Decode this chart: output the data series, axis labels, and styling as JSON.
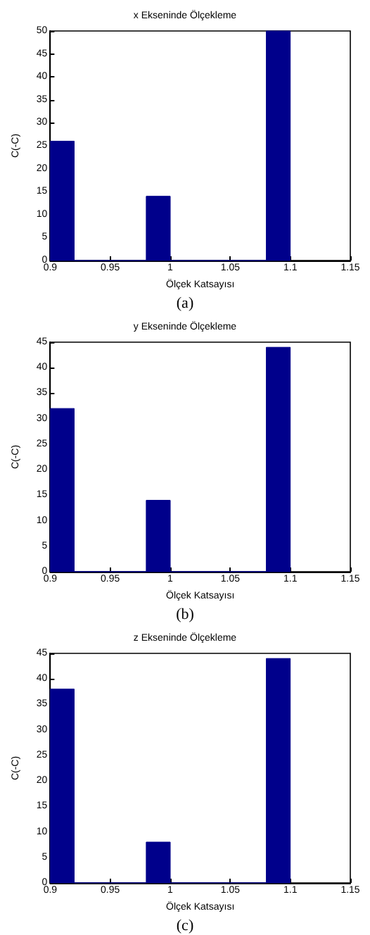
{
  "chart_data": [
    {
      "type": "histogram",
      "title": "x Ekseninde Ölçekleme",
      "xlabel": "Ölçek Katsayısı",
      "ylabel": "C(-C)",
      "bins": [
        0.9,
        0.92,
        0.94,
        0.96,
        0.98,
        1.0,
        1.02,
        1.04,
        1.06,
        1.08,
        1.1
      ],
      "values": [
        26,
        0,
        0,
        0,
        14,
        0,
        0,
        0,
        0,
        50
      ],
      "color": "#00008b",
      "xlim": [
        0.9,
        1.15
      ],
      "xticks": [
        0.9,
        0.95,
        1,
        1.05,
        1.1,
        1.15
      ],
      "ylim": [
        0,
        50
      ],
      "yticks": [
        0,
        5,
        10,
        15,
        20,
        25,
        30,
        35,
        40,
        45,
        50
      ],
      "grid": false,
      "annotations": [
        "(a)"
      ]
    },
    {
      "type": "histogram",
      "title": "y Ekseninde Ölçekleme",
      "xlabel": "Ölçek Katsayısı",
      "ylabel": "C(-C)",
      "bins": [
        0.9,
        0.92,
        0.94,
        0.96,
        0.98,
        1.0,
        1.02,
        1.04,
        1.06,
        1.08,
        1.1
      ],
      "values": [
        32,
        0,
        0,
        0,
        14,
        0,
        0,
        0,
        0,
        44
      ],
      "color": "#00008b",
      "xlim": [
        0.9,
        1.15
      ],
      "xticks": [
        0.9,
        0.95,
        1,
        1.05,
        1.1,
        1.15
      ],
      "ylim": [
        0,
        45
      ],
      "yticks": [
        0,
        5,
        10,
        15,
        20,
        25,
        30,
        35,
        40,
        45
      ],
      "grid": false,
      "annotations": [
        "(b)"
      ]
    },
    {
      "type": "histogram",
      "title": "z Ekseninde Ölçekleme",
      "xlabel": "Ölçek Katsayısı",
      "ylabel": "C(-C)",
      "bins": [
        0.9,
        0.92,
        0.94,
        0.96,
        0.98,
        1.0,
        1.02,
        1.04,
        1.06,
        1.08,
        1.1
      ],
      "values": [
        38,
        0,
        0,
        0,
        8,
        0,
        0,
        0,
        0,
        44
      ],
      "color": "#00008b",
      "xlim": [
        0.9,
        1.15
      ],
      "xticks": [
        0.9,
        0.95,
        1,
        1.05,
        1.1,
        1.15
      ],
      "ylim": [
        0,
        45
      ],
      "yticks": [
        0,
        5,
        10,
        15,
        20,
        25,
        30,
        35,
        40,
        45
      ],
      "grid": false,
      "annotations": [
        "(c)"
      ]
    }
  ]
}
